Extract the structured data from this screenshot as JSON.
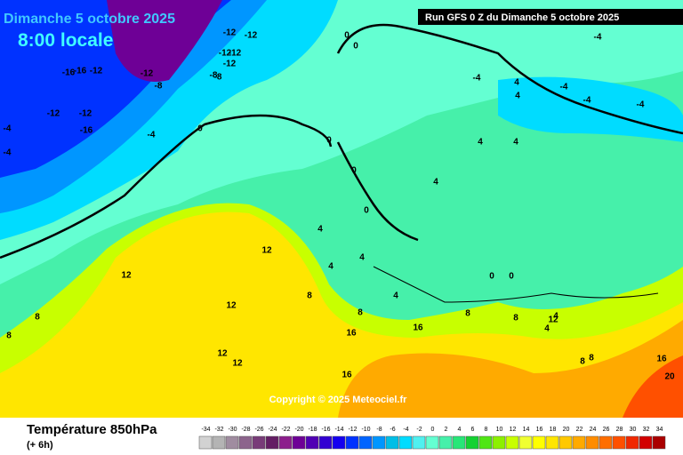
{
  "header": {
    "date": "Dimanche 5 octobre 2025",
    "time": "8:00 locale",
    "run": "Run GFS 0 Z du Dimanche 5 octobre 2025",
    "copyright": "Copyright © 2025 Meteociel.fr"
  },
  "legend": {
    "title": "Température 850hPa",
    "lead": "(+ 6h)",
    "values": [
      -34,
      -32,
      -30,
      -28,
      -26,
      -24,
      -22,
      -20,
      -18,
      -16,
      -14,
      -12,
      -10,
      -8,
      -6,
      -4,
      -2,
      0,
      2,
      4,
      6,
      8,
      10,
      12,
      14,
      16,
      18,
      20,
      22,
      24,
      26,
      28,
      30,
      32,
      34
    ],
    "colors": [
      "#d2d2d2",
      "#b4b4b4",
      "#a08ca0",
      "#8c648c",
      "#783c78",
      "#641e64",
      "#8c1e8c",
      "#6e0096",
      "#5000b4",
      "#3200d2",
      "#1400f0",
      "#0032ff",
      "#0064ff",
      "#0096ff",
      "#00bee6",
      "#00dcff",
      "#50f0f0",
      "#64ffd2",
      "#46f0aa",
      "#28e678",
      "#14d232",
      "#50e614",
      "#8cf000",
      "#c8ff00",
      "#f0ff32",
      "#ffff00",
      "#ffe600",
      "#ffc800",
      "#ffaa00",
      "#ff8c00",
      "#ff6e00",
      "#ff5000",
      "#f02800",
      "#d20000",
      "#aa0000"
    ]
  },
  "map_labels": [
    -8,
    -12,
    -12,
    -12,
    -16,
    -16,
    -12,
    -12,
    -12,
    -12,
    -8,
    -8,
    -12,
    -16,
    -12,
    -4,
    -4,
    -4,
    -4,
    0,
    0,
    0,
    0,
    0,
    -4,
    0,
    4,
    4,
    -4,
    -4,
    -4,
    4,
    4,
    4,
    0,
    0,
    4,
    4,
    4,
    4,
    8,
    8,
    8,
    12,
    12,
    12,
    12,
    12,
    8,
    8,
    16,
    16,
    16,
    12,
    16,
    20,
    8,
    8,
    4,
    4,
    8
  ]
}
